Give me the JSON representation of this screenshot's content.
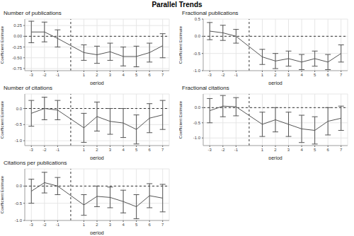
{
  "title": "Parallel Trends",
  "chart_data": [
    {
      "type": "line",
      "title": "Number of publications",
      "x_label": "period",
      "y_label": "Coefficient Estimate",
      "x": [
        -3,
        -2,
        -1,
        1,
        2,
        3,
        4,
        5,
        6,
        7
      ],
      "values": [
        0.1,
        0.1,
        -0.05,
        -0.38,
        -0.43,
        -0.36,
        -0.47,
        -0.47,
        -0.38,
        -0.22
      ],
      "errors": [
        0.25,
        0.23,
        0.2,
        0.18,
        0.2,
        0.2,
        0.22,
        0.24,
        0.22,
        0.28
      ],
      "color": "#555555",
      "marker": "none",
      "line_style": "solid",
      "xlim": [
        -3.5,
        7.5
      ],
      "xticks": [
        -3,
        -2,
        -1,
        1,
        2,
        3,
        4,
        5,
        6,
        7
      ],
      "ylim": [
        -0.8,
        0.4
      ],
      "yticks": [
        -0.75,
        {
          "value": -0.5,
          "label": "-0.50"
        },
        -0.25,
        {
          "value": 0,
          "label": "0.00"
        },
        0.25
      ],
      "reference_x": 0,
      "reference_y": 0,
      "grid": true
    },
    {
      "type": "line",
      "title": "Fractional publications",
      "x_label": "period",
      "y_label": "Coefficient Estimate",
      "x": [
        -3,
        -2,
        -1,
        1,
        2,
        3,
        4,
        5,
        6,
        7
      ],
      "values": [
        0.15,
        0.1,
        0.0,
        -0.6,
        -0.72,
        -0.65,
        -0.75,
        -0.65,
        -0.75,
        -0.5
      ],
      "errors": [
        0.25,
        0.22,
        0.2,
        0.22,
        0.22,
        0.22,
        0.22,
        0.22,
        0.22,
        0.25
      ],
      "color": "#555555",
      "marker": "none",
      "line_style": "solid",
      "xlim": [
        -3.5,
        7.5
      ],
      "xticks": [
        -3,
        -2,
        -1,
        1,
        2,
        3,
        4,
        5,
        6,
        7
      ],
      "ylim": [
        -1.0,
        0.5
      ],
      "yticks": [
        {
          "value": -1,
          "label": "-1.0"
        },
        -0.5,
        {
          "value": 0,
          "label": "0.0"
        },
        0.5
      ],
      "reference_x": 0,
      "reference_y": 0,
      "grid": true
    },
    {
      "type": "line",
      "title": "Number of citations",
      "x_label": "period",
      "y_label": "Coefficient Estimate",
      "x": [
        -3,
        -2,
        -1,
        1,
        2,
        3,
        4,
        5,
        6,
        7
      ],
      "values": [
        -0.15,
        0.0,
        -0.05,
        -0.6,
        -0.25,
        -0.4,
        -0.45,
        -0.65,
        -0.3,
        -0.2
      ],
      "errors": [
        0.4,
        0.35,
        0.3,
        0.45,
        0.45,
        0.4,
        0.45,
        0.45,
        0.45,
        0.45
      ],
      "color": "#555555",
      "marker": "none",
      "line_style": "solid",
      "xlim": [
        -3.5,
        7.5
      ],
      "xticks": [
        -3,
        -2,
        -1,
        1,
        2,
        3,
        4,
        5,
        6,
        7
      ],
      "ylim": [
        -1.15,
        0.45
      ],
      "yticks": [
        {
          "value": -1,
          "label": "-1.0"
        },
        -0.5,
        {
          "value": 0,
          "label": "0.0"
        }
      ],
      "reference_x": 0,
      "reference_y": 0,
      "grid": true
    },
    {
      "type": "line",
      "title": "Fractional citations",
      "x_label": "period",
      "y_label": "Coefficient Estimate",
      "x": [
        -3,
        -2,
        -1,
        1,
        2,
        3,
        4,
        5,
        6,
        7
      ],
      "values": [
        -0.1,
        0.05,
        0.03,
        -0.55,
        -0.4,
        -0.55,
        -0.7,
        -0.75,
        -0.45,
        -0.35
      ],
      "errors": [
        0.4,
        0.35,
        0.3,
        0.4,
        0.4,
        0.4,
        0.45,
        0.45,
        0.45,
        0.4
      ],
      "color": "#555555",
      "marker": "none",
      "line_style": "solid",
      "xlim": [
        -3.5,
        7.5
      ],
      "xticks": [
        -3,
        -2,
        -1,
        1,
        2,
        3,
        4,
        5,
        6,
        7
      ],
      "ylim": [
        -1.25,
        0.45
      ],
      "yticks": [
        {
          "value": -1,
          "label": "-1.0"
        },
        -0.5,
        {
          "value": 0,
          "label": "0.0"
        }
      ],
      "reference_x": 0,
      "reference_y": 0,
      "grid": true
    },
    {
      "type": "line",
      "title": "Citations per publications",
      "x_label": "period",
      "y_label": "Coefficient Estimate",
      "x": [
        -3,
        -2,
        -1,
        1,
        2,
        3,
        4,
        5,
        6,
        7
      ],
      "values": [
        -0.15,
        0.1,
        0.0,
        -0.55,
        -0.3,
        -0.33,
        -0.45,
        -0.6,
        -0.28,
        -0.35
      ],
      "errors": [
        0.35,
        0.3,
        0.25,
        0.3,
        0.3,
        0.3,
        0.33,
        0.35,
        0.35,
        0.4
      ],
      "color": "#555555",
      "marker": "none",
      "line_style": "solid",
      "xlim": [
        -3.5,
        7.5
      ],
      "xticks": [
        -3,
        -2,
        -1,
        1,
        2,
        3,
        4,
        5,
        6,
        7
      ],
      "ylim": [
        -1.0,
        0.5
      ],
      "yticks": [
        {
          "value": -1,
          "label": "-1.0"
        },
        -0.5,
        {
          "value": 0,
          "label": "0.0"
        }
      ],
      "reference_x": 0,
      "reference_y": 0,
      "grid": true
    }
  ]
}
